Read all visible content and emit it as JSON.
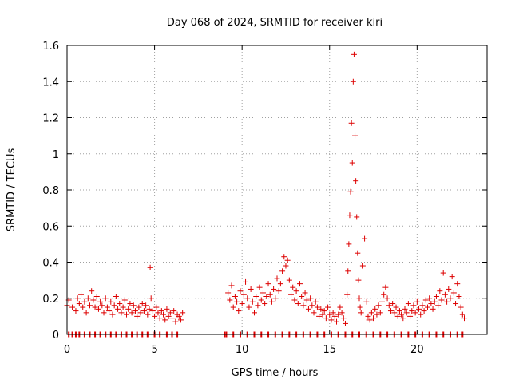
{
  "chart_data": {
    "type": "scatter",
    "title": "Day 068 of 2024, SRMTID for receiver kiri",
    "xlabel": "GPS time / hours",
    "ylabel": "SRMTID / TECUs",
    "xlim": [
      0,
      24
    ],
    "ylim": [
      0,
      1.6
    ],
    "xticks": [
      0,
      5,
      10,
      15,
      20
    ],
    "xtick_labels": [
      "0",
      "5",
      "10",
      "15",
      "20"
    ],
    "yticks": [
      0,
      0.2,
      0.4,
      0.6,
      0.8,
      1.0,
      1.2,
      1.4,
      1.6
    ],
    "ytick_labels": [
      "0",
      "0.2",
      "0.4",
      "0.6",
      "0.8",
      "1",
      "1.2",
      "1.4",
      "1.6"
    ],
    "grid": true,
    "marker": "+",
    "color": "#dd0000",
    "series": [
      {
        "name": "SRMTID",
        "x": [
          0.0,
          0.1,
          0.3,
          0.5,
          0.6,
          0.7,
          0.8,
          0.9,
          1.0,
          1.1,
          1.2,
          1.3,
          1.4,
          1.5,
          1.6,
          1.7,
          1.8,
          1.9,
          2.0,
          2.1,
          2.2,
          2.3,
          2.4,
          2.5,
          2.6,
          2.7,
          2.8,
          2.9,
          3.0,
          3.1,
          3.2,
          3.3,
          3.4,
          3.5,
          3.6,
          3.7,
          3.8,
          3.9,
          4.0,
          4.1,
          4.2,
          4.3,
          4.4,
          4.5,
          4.6,
          4.7,
          4.75,
          4.8,
          4.9,
          5.0,
          5.1,
          5.2,
          5.3,
          5.4,
          5.5,
          5.6,
          5.7,
          5.8,
          5.9,
          6.0,
          6.1,
          6.2,
          6.3,
          6.4,
          6.5,
          6.6,
          9.2,
          9.3,
          9.4,
          9.5,
          9.6,
          9.7,
          9.8,
          9.9,
          10.0,
          10.1,
          10.2,
          10.3,
          10.4,
          10.5,
          10.6,
          10.7,
          10.8,
          10.9,
          11.0,
          11.1,
          11.2,
          11.3,
          11.4,
          11.5,
          11.6,
          11.7,
          11.8,
          11.9,
          12.0,
          12.1,
          12.2,
          12.3,
          12.4,
          12.5,
          12.6,
          12.7,
          12.8,
          12.9,
          13.0,
          13.1,
          13.2,
          13.3,
          13.4,
          13.5,
          13.6,
          13.7,
          13.8,
          13.9,
          14.0,
          14.1,
          14.2,
          14.3,
          14.4,
          14.5,
          14.6,
          14.7,
          14.8,
          14.9,
          15.0,
          15.1,
          15.2,
          15.3,
          15.4,
          15.5,
          15.6,
          15.7,
          15.8,
          15.9,
          16.0,
          16.05,
          16.1,
          16.15,
          16.2,
          16.25,
          16.3,
          16.35,
          16.4,
          16.45,
          16.5,
          16.55,
          16.6,
          16.65,
          16.7,
          16.75,
          16.8,
          16.9,
          17.0,
          17.1,
          17.2,
          17.3,
          17.4,
          17.5,
          17.6,
          17.7,
          17.8,
          17.9,
          18.0,
          18.1,
          18.2,
          18.3,
          18.4,
          18.5,
          18.6,
          18.7,
          18.8,
          18.9,
          19.0,
          19.1,
          19.2,
          19.3,
          19.4,
          19.5,
          19.6,
          19.7,
          19.8,
          19.9,
          20.0,
          20.1,
          20.2,
          20.3,
          20.4,
          20.5,
          20.6,
          20.7,
          20.8,
          20.9,
          21.0,
          21.1,
          21.2,
          21.3,
          21.4,
          21.5,
          21.6,
          21.7,
          21.8,
          21.9,
          22.0,
          22.1,
          22.2,
          22.3,
          22.4,
          22.5,
          22.6,
          22.7
        ],
        "y": [
          0.16,
          0.19,
          0.15,
          0.13,
          0.2,
          0.17,
          0.22,
          0.15,
          0.18,
          0.12,
          0.2,
          0.16,
          0.24,
          0.19,
          0.15,
          0.21,
          0.14,
          0.18,
          0.16,
          0.12,
          0.2,
          0.15,
          0.13,
          0.18,
          0.11,
          0.16,
          0.21,
          0.14,
          0.17,
          0.12,
          0.15,
          0.19,
          0.11,
          0.14,
          0.17,
          0.12,
          0.16,
          0.13,
          0.1,
          0.15,
          0.12,
          0.17,
          0.13,
          0.16,
          0.11,
          0.14,
          0.37,
          0.2,
          0.13,
          0.1,
          0.15,
          0.12,
          0.09,
          0.13,
          0.11,
          0.08,
          0.14,
          0.1,
          0.12,
          0.09,
          0.13,
          0.07,
          0.11,
          0.1,
          0.08,
          0.12,
          0.23,
          0.19,
          0.27,
          0.15,
          0.21,
          0.18,
          0.13,
          0.24,
          0.17,
          0.22,
          0.29,
          0.2,
          0.15,
          0.25,
          0.18,
          0.12,
          0.21,
          0.16,
          0.26,
          0.19,
          0.23,
          0.17,
          0.21,
          0.28,
          0.22,
          0.18,
          0.25,
          0.2,
          0.31,
          0.24,
          0.28,
          0.35,
          0.43,
          0.38,
          0.41,
          0.3,
          0.22,
          0.26,
          0.19,
          0.24,
          0.17,
          0.28,
          0.21,
          0.16,
          0.23,
          0.19,
          0.14,
          0.2,
          0.16,
          0.12,
          0.18,
          0.15,
          0.1,
          0.14,
          0.11,
          0.13,
          0.09,
          0.15,
          0.11,
          0.08,
          0.12,
          0.1,
          0.07,
          0.11,
          0.15,
          0.12,
          0.09,
          0.06,
          0.22,
          0.35,
          0.5,
          0.66,
          0.79,
          1.17,
          0.95,
          1.4,
          1.55,
          1.1,
          0.85,
          0.65,
          0.45,
          0.3,
          0.2,
          0.15,
          0.12,
          0.38,
          0.53,
          0.18,
          0.1,
          0.08,
          0.12,
          0.09,
          0.14,
          0.11,
          0.16,
          0.12,
          0.18,
          0.22,
          0.26,
          0.2,
          0.16,
          0.13,
          0.17,
          0.12,
          0.15,
          0.1,
          0.13,
          0.11,
          0.09,
          0.14,
          0.12,
          0.17,
          0.1,
          0.13,
          0.16,
          0.12,
          0.18,
          0.14,
          0.11,
          0.16,
          0.13,
          0.19,
          0.15,
          0.2,
          0.17,
          0.14,
          0.18,
          0.21,
          0.16,
          0.24,
          0.19,
          0.34,
          0.22,
          0.18,
          0.25,
          0.2,
          0.32,
          0.23,
          0.17,
          0.28,
          0.21,
          0.15,
          0.11,
          0.09
        ]
      }
    ],
    "zero_markers_x": [
      0.1,
      0.3,
      0.5,
      0.7,
      1.0,
      1.3,
      1.6,
      1.9,
      2.2,
      2.5,
      2.8,
      3.1,
      3.4,
      3.7,
      4.0,
      4.3,
      4.6,
      5.0,
      5.3,
      5.7,
      6.0,
      6.3,
      9.0,
      9.1,
      9.5,
      9.9,
      10.3,
      10.7,
      11.1,
      11.5,
      11.9,
      12.3,
      12.7,
      13.1,
      13.5,
      13.9,
      14.3,
      14.7,
      15.1,
      15.5,
      15.9,
      16.3,
      16.7,
      17.1,
      17.5,
      17.9,
      18.3,
      18.7,
      19.1,
      19.5,
      19.9,
      20.3,
      20.7,
      21.1,
      21.5,
      21.9,
      22.3,
      22.6
    ]
  }
}
